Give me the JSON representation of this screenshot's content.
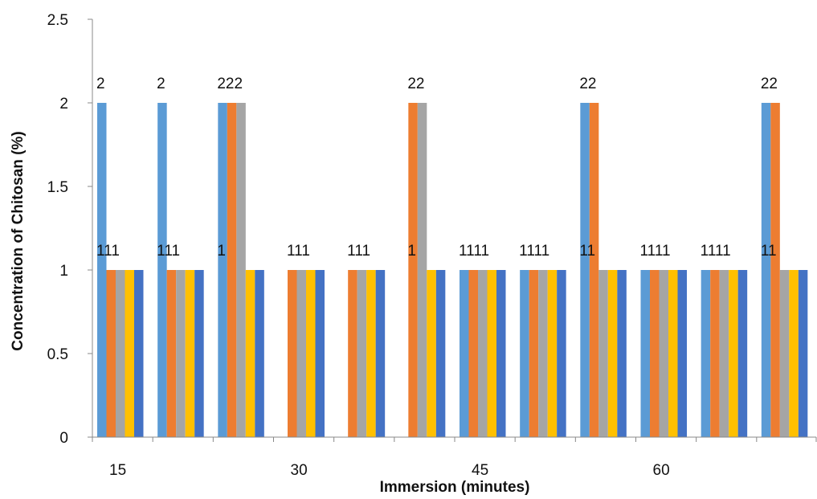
{
  "chart_data": {
    "type": "bar",
    "title": "",
    "xlabel": "Immersion (minutes)",
    "ylabel": "Concentration of Chitosan (%)",
    "ylim": [
      0,
      2.5
    ],
    "yticks": [
      "0",
      "0.5",
      "1",
      "1.5",
      "2",
      "2.5"
    ],
    "xtick_labels": [
      {
        "label": "15",
        "group": 0
      },
      {
        "label": "30",
        "group": 3
      },
      {
        "label": "45",
        "group": 6
      },
      {
        "label": "60",
        "group": 9
      }
    ],
    "group_count": 12,
    "grid": false,
    "legend": "none",
    "series": [
      {
        "color": "#5b9bd5",
        "values": [
          2,
          2,
          2,
          null,
          null,
          null,
          1,
          1,
          2,
          1,
          1,
          2
        ]
      },
      {
        "color": "#ed7d31",
        "values": [
          1,
          1,
          2,
          1,
          1,
          2,
          1,
          1,
          2,
          1,
          1,
          2
        ]
      },
      {
        "color": "#a5a5a5",
        "values": [
          1,
          1,
          2,
          1,
          1,
          2,
          1,
          1,
          1,
          1,
          1,
          1
        ]
      },
      {
        "color": "#ffc000",
        "values": [
          1,
          1,
          1,
          1,
          1,
          1,
          1,
          1,
          1,
          1,
          1,
          1
        ]
      },
      {
        "color": "#4472c4",
        "values": [
          1,
          1,
          1,
          1,
          1,
          1,
          1,
          1,
          1,
          1,
          1,
          1
        ]
      }
    ],
    "data_labels": [
      {
        "group": 0,
        "level": 2,
        "text": "2"
      },
      {
        "group": 0,
        "level": 1,
        "text": "111"
      },
      {
        "group": 1,
        "level": 2,
        "text": "2"
      },
      {
        "group": 1,
        "level": 1,
        "text": "111"
      },
      {
        "group": 2,
        "level": 2,
        "text": "222"
      },
      {
        "group": 2,
        "level": 1,
        "text": "1"
      },
      {
        "group": 3,
        "level": 1,
        "text": "111"
      },
      {
        "group": 4,
        "level": 1,
        "text": "111"
      },
      {
        "group": 5,
        "level": 2,
        "text": "22"
      },
      {
        "group": 5,
        "level": 1,
        "text": "1"
      },
      {
        "group": 6,
        "level": 1,
        "text": "1111"
      },
      {
        "group": 7,
        "level": 1,
        "text": "1111"
      },
      {
        "group": 8,
        "level": 2,
        "text": "22"
      },
      {
        "group": 8,
        "level": 1,
        "text": "11"
      },
      {
        "group": 9,
        "level": 1,
        "text": "1111"
      },
      {
        "group": 10,
        "level": 1,
        "text": "1111"
      },
      {
        "group": 11,
        "level": 2,
        "text": "22"
      },
      {
        "group": 11,
        "level": 1,
        "text": "11"
      }
    ]
  }
}
